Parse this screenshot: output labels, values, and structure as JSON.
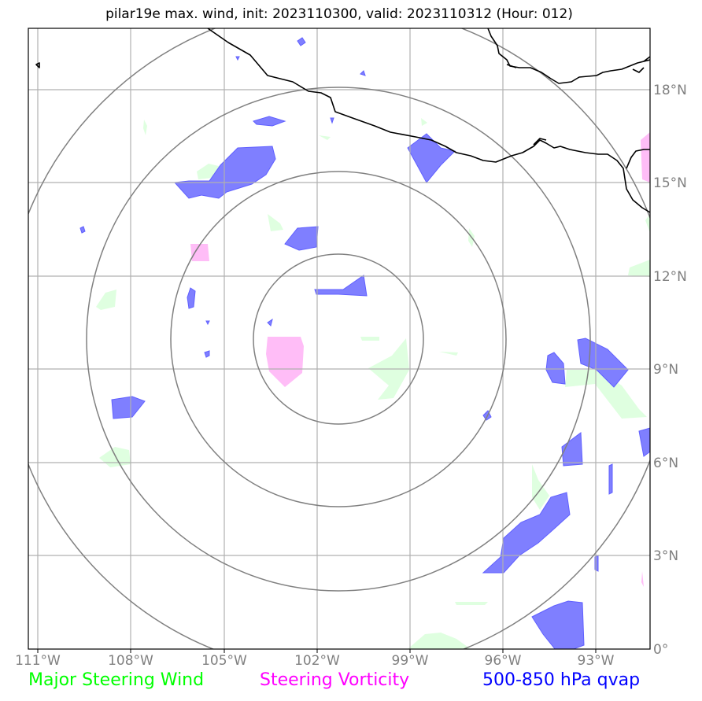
{
  "title": "pilar19e max. wind, init: 2023110300, valid: 2023110312 (Hour: 012)",
  "axes": {
    "lon_labels": [
      "111°W",
      "108°W",
      "105°W",
      "102°W",
      "99°W",
      "96°W",
      "93°W"
    ],
    "lat_labels": [
      "18°N",
      "15°N",
      "12°N",
      "9°N",
      "6°N",
      "3°N",
      "0°"
    ]
  },
  "legend": {
    "wind": "Major Steering Wind",
    "vorticity": "Steering Vorticity",
    "qvap": "500-850 hPa qvap"
  },
  "colors": {
    "wind": "#00ff00",
    "vorticity": "#ff00ff",
    "qvap": "#0000ff",
    "wind_fill": "#dfffe0",
    "vorticity_fill": "#ffbdf7",
    "qvap_fill": "#7f7fff",
    "grid": "#b0b0b0",
    "rings": "#808080",
    "coast": "#000000"
  }
}
